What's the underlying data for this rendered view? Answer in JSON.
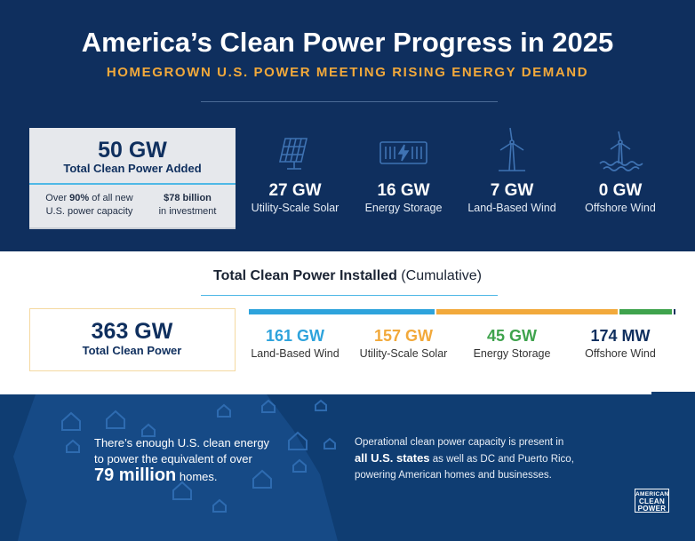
{
  "header": {
    "title": "America’s Clean Power Progress in 2025",
    "subtitle": "HOMEGROWN U.S. POWER MEETING RISING ENERGY DEMAND"
  },
  "added": {
    "value": "50 GW",
    "label": "Total Clean Power Added",
    "note_share_prefix": "Over ",
    "note_share_bold": "90%",
    "note_share_suffix": " of all new",
    "note_share_line2": "U.S. power capacity",
    "note_invest_bold": "$78 billion",
    "note_invest_line2": "in investment"
  },
  "technologies": [
    {
      "value": "27 GW",
      "label": "Utility-Scale Solar",
      "icon": "solar-panel-icon"
    },
    {
      "value": "16 GW",
      "label": "Energy Storage",
      "icon": "battery-icon"
    },
    {
      "value": "7 GW",
      "label": "Land-Based Wind",
      "icon": "wind-turbine-icon"
    },
    {
      "value": "0 GW",
      "label": "Offshore Wind",
      "icon": "offshore-wind-icon"
    }
  ],
  "cumulative": {
    "title_bold": "Total Clean Power Installed",
    "title_rest": " (Cumulative)",
    "total_value": "363 GW",
    "total_label": "Total Clean Power",
    "items": [
      {
        "value": "161 GW",
        "label": "Land-Based Wind",
        "color": "#2ea3dc",
        "share": 0.443
      },
      {
        "value": "157 GW",
        "label": "Utility-Scale Solar",
        "color": "#f2a93b",
        "share": 0.432
      },
      {
        "value": "45 GW",
        "label": "Energy Storage",
        "color": "#3fa34d",
        "share": 0.124
      },
      {
        "value": "174 MW",
        "label": "Offshore Wind",
        "color": "#0f2f5e",
        "share": 0.0005
      }
    ]
  },
  "homes": {
    "line1": "There’s enough U.S. clean energy",
    "line2": "to power the equivalent of over",
    "big": "79 million",
    "rest": " homes."
  },
  "states": {
    "line1": "Operational clean power capacity is present in",
    "bold": "all U.S. states",
    "line2_rest": " as well as DC and Puerto Rico,",
    "line3": "powering American homes and businesses."
  },
  "logo": {
    "line1": "AMERICAN",
    "line2": "CLEAN",
    "line3": "POWER"
  },
  "colors": {
    "navy": "#0f2f5e",
    "accent_orange": "#f2a93b",
    "accent_blue": "#2ea3dc",
    "accent_green": "#3fa34d"
  }
}
